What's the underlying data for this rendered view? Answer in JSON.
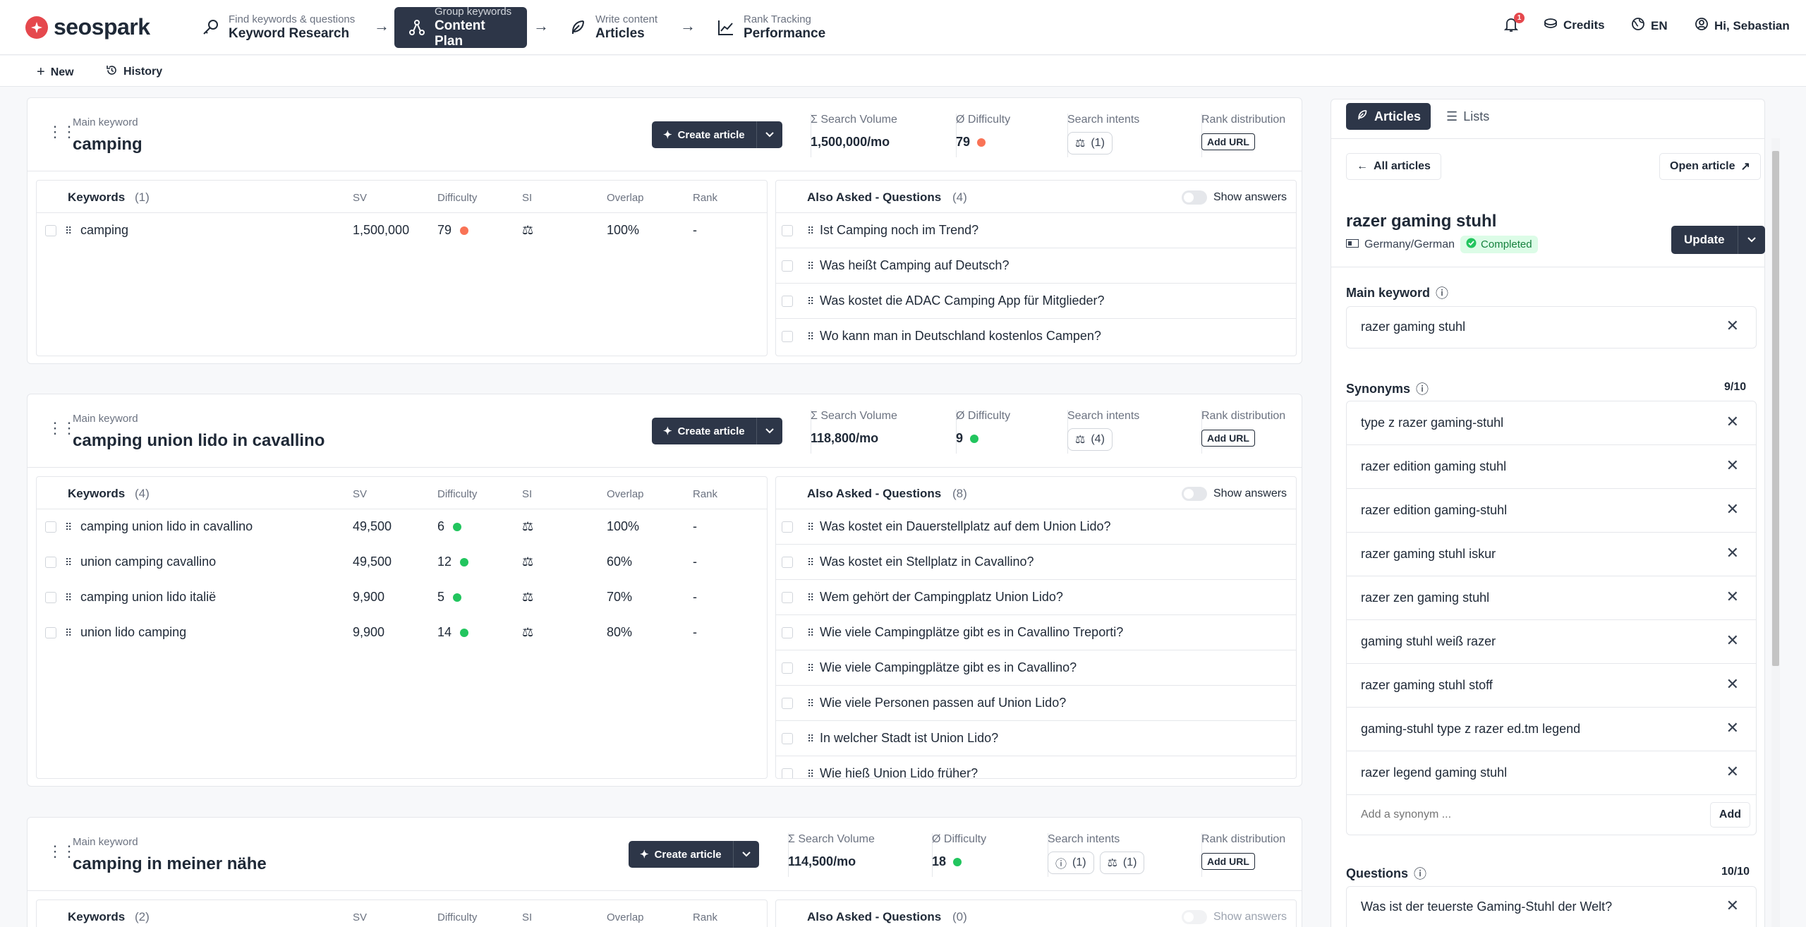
{
  "brand": {
    "name": "seospark"
  },
  "nav": {
    "steps": [
      {
        "small": "Find keywords & questions",
        "big": "Keyword Research"
      },
      {
        "small": "Group keywords",
        "big": "Content Plan"
      },
      {
        "small": "Write content",
        "big": "Articles"
      },
      {
        "small": "Rank Tracking",
        "big": "Performance"
      }
    ],
    "arrow": "→",
    "notification_count": "1",
    "credits": "Credits",
    "language": "EN",
    "greeting": "Hi, Sebastian"
  },
  "toolbar": {
    "new_label": "New",
    "history_label": "History"
  },
  "labels": {
    "main_keyword": "Main keyword",
    "create_article": "Create article",
    "search_volume": "Search Volume",
    "difficulty": "Difficulty",
    "search_intents": "Search intents",
    "rank_distribution": "Rank distribution",
    "add_url": "Add URL",
    "keywords": "Keywords",
    "sv": "SV",
    "difficulty_col": "Difficulty",
    "si": "SI",
    "overlap": "Overlap",
    "rank": "Rank",
    "also_asked": "Also Asked - Questions",
    "show_answers": "Show answers"
  },
  "groups": [
    {
      "main_keyword": "camping",
      "search_volume": "1,500,000/mo",
      "difficulty": "79",
      "difficulty_color": "#f97356",
      "intents": [
        {
          "icon": "commercial-icon",
          "count": "(1)"
        }
      ],
      "keywords_count": "(1)",
      "questions_count": "(4)",
      "keywords": [
        {
          "keyword": "camping",
          "sv": "1,500,000",
          "difficulty": "79",
          "diff_color": "#f97356",
          "overlap": "100%",
          "rank": "-"
        }
      ],
      "questions": [
        "Ist Camping noch im Trend?",
        "Was heißt Camping auf Deutsch?",
        "Was kostet die ADAC Camping App für Mitglieder?",
        "Wo kann man in Deutschland kostenlos Campen?"
      ]
    },
    {
      "main_keyword": "camping union lido in cavallino",
      "search_volume": "118,800/mo",
      "difficulty": "9",
      "difficulty_color": "#22c55e",
      "intents": [
        {
          "icon": "commercial-icon",
          "count": "(4)"
        }
      ],
      "keywords_count": "(4)",
      "questions_count": "(8)",
      "keywords": [
        {
          "keyword": "camping union lido in cavallino",
          "sv": "49,500",
          "difficulty": "6",
          "diff_color": "#22c55e",
          "overlap": "100%",
          "rank": "-"
        },
        {
          "keyword": "union camping cavallino",
          "sv": "49,500",
          "difficulty": "12",
          "diff_color": "#22c55e",
          "overlap": "60%",
          "rank": "-"
        },
        {
          "keyword": "camping union lido italië",
          "sv": "9,900",
          "difficulty": "5",
          "diff_color": "#22c55e",
          "overlap": "70%",
          "rank": "-"
        },
        {
          "keyword": "union lido camping",
          "sv": "9,900",
          "difficulty": "14",
          "diff_color": "#22c55e",
          "overlap": "80%",
          "rank": "-"
        }
      ],
      "questions": [
        "Was kostet ein Dauerstellplatz auf dem Union Lido?",
        "Was kostet ein Stellplatz in Cavallino?",
        "Wem gehört der Campingplatz Union Lido?",
        "Wie viele Campingplätze gibt es in Cavallino Treporti?",
        "Wie viele Campingplätze gibt es in Cavallino?",
        "Wie viele Personen passen auf Union Lido?",
        "In welcher Stadt ist Union Lido?",
        "Wie hieß Union Lido früher?"
      ]
    },
    {
      "main_keyword": "camping in meiner nähe",
      "search_volume": "114,500/mo",
      "difficulty": "18",
      "difficulty_color": "#22c55e",
      "intents": [
        {
          "icon": "info-icon",
          "count": "(1)"
        },
        {
          "icon": "commercial-icon",
          "count": "(1)"
        }
      ],
      "keywords_count": "(2)",
      "questions_count": "(0)"
    }
  ],
  "sidebar": {
    "tab_articles": "Articles",
    "tab_lists": "Lists",
    "all_articles": "All articles",
    "open_article": "Open article",
    "article_title": "razer gaming stuhl",
    "location": "Germany/German",
    "status": "Completed",
    "update": "Update",
    "main_keyword_label": "Main keyword",
    "main_keyword": "razer gaming stuhl",
    "synonyms_label": "Synonyms",
    "synonyms_count": "9/10",
    "synonyms": [
      "type z razer gaming-stuhl",
      "razer edition gaming stuhl",
      "razer edition gaming-stuhl",
      "razer gaming stuhl iskur",
      "razer zen gaming stuhl",
      "gaming stuhl weiß razer",
      "razer gaming stuhl stoff",
      "gaming-stuhl type z razer ed.tm legend",
      "razer legend gaming stuhl"
    ],
    "synonym_placeholder": "Add a synonym ...",
    "add": "Add",
    "questions_label": "Questions",
    "questions_count": "10/10",
    "first_question": "Was ist der teuerste Gaming-Stuhl der Welt?"
  },
  "colors": {
    "primary": "#2d3648",
    "accent": "#e5484d",
    "easy": "#22c55e",
    "hard": "#f97356"
  }
}
